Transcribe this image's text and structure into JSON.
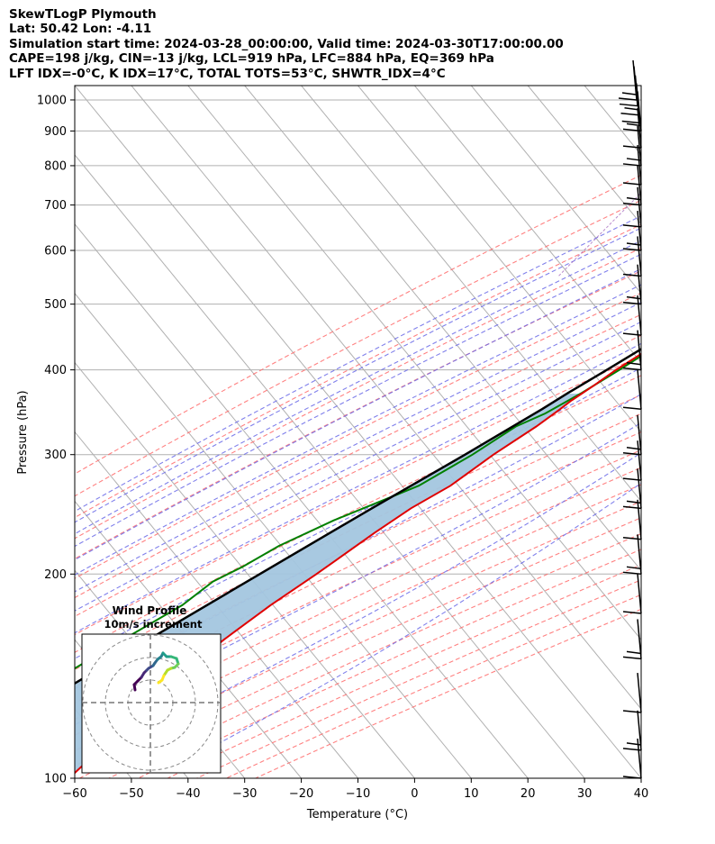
{
  "header": {
    "line1": "SkewTLogP Plymouth",
    "line2": "Lat: 50.42   Lon: -4.11",
    "line3": "Simulation start time: 2024-03-28_00:00:00, Valid time: 2024-03-30T17:00:00.00",
    "line4": "CAPE=198 j/kg, CIN=-13 j/kg, LCL=919 hPa, LFC=884 hPa, EQ=369 hPa",
    "line5": "LFT IDX=-0°C, K IDX=17°C, TOTAL TOTS=53°C, SHWTR_IDX=4°C"
  },
  "chart_data": {
    "type": "skewt",
    "xlabel": "Temperature (°C)",
    "ylabel": "Pressure (hPa)",
    "xlim": [
      -60,
      40
    ],
    "plim": [
      1050,
      100
    ],
    "y_scale": "log",
    "x_ticks": [
      "−60",
      "−50",
      "−40",
      "−30",
      "−20",
      "−10",
      "0",
      "10",
      "20",
      "30",
      "40"
    ],
    "x_tick_values": [
      -60,
      -50,
      -40,
      -30,
      -20,
      -10,
      0,
      10,
      20,
      30,
      40
    ],
    "p_ticks": [
      1000,
      900,
      800,
      700,
      600,
      500,
      400,
      300,
      200,
      100
    ],
    "grid": true,
    "colors": {
      "temperature": "#e00000",
      "dewpoint": "#008000",
      "parcel": "#000000",
      "cape": "#a3c6df",
      "cin": "#f19a9a",
      "dry_adiabat": "#ff6b6b",
      "moist_adiabat": "#6a6ae8",
      "mixing_ratio": "#9b59b6"
    },
    "temperature": [
      [
        980,
        10.3
      ],
      [
        950,
        9.3
      ],
      [
        925,
        8.2
      ],
      [
        900,
        7.0
      ],
      [
        850,
        5.2
      ],
      [
        800,
        2.9
      ],
      [
        750,
        0.3
      ],
      [
        700,
        -2.3
      ],
      [
        650,
        -4.6
      ],
      [
        600,
        -7.5
      ],
      [
        550,
        -11.0
      ],
      [
        500,
        -14.4
      ],
      [
        450,
        -18.7
      ],
      [
        400,
        -23.4
      ],
      [
        380,
        -25.0
      ],
      [
        360,
        -26.9
      ],
      [
        350,
        -27.6
      ],
      [
        330,
        -29.3
      ],
      [
        300,
        -32.8
      ],
      [
        270,
        -35.9
      ],
      [
        250,
        -39.6
      ],
      [
        230,
        -42.5
      ],
      [
        210,
        -45.3
      ],
      [
        200,
        -46.8
      ],
      [
        180,
        -50.4
      ],
      [
        160,
        -53.7
      ],
      [
        145,
        -55.8
      ],
      [
        135,
        -56.8
      ],
      [
        125,
        -57.8
      ],
      [
        115,
        -59.0
      ],
      [
        108,
        -60.0
      ],
      [
        100,
        -61.0
      ]
    ],
    "dewpoint": [
      [
        985,
        7.3
      ],
      [
        965,
        7.4
      ],
      [
        940,
        5.8
      ],
      [
        920,
        5.3
      ],
      [
        880,
        4.0
      ],
      [
        850,
        1.0
      ],
      [
        820,
        -1.7
      ],
      [
        790,
        -1.7
      ],
      [
        750,
        -3.2
      ],
      [
        700,
        -5.2
      ],
      [
        650,
        -6.7
      ],
      [
        600,
        -7.3
      ],
      [
        550,
        -9.8
      ],
      [
        500,
        -13.0
      ],
      [
        460,
        -16.2
      ],
      [
        430,
        -20.0
      ],
      [
        400,
        -22.8
      ],
      [
        370,
        -26.1
      ],
      [
        345,
        -29.6
      ],
      [
        330,
        -32.9
      ],
      [
        300,
        -36.5
      ],
      [
        270,
        -41.5
      ],
      [
        240,
        -51.5
      ],
      [
        220,
        -57.5
      ],
      [
        205,
        -60.9
      ],
      [
        195,
        -64.0
      ],
      [
        180,
        -66.0
      ],
      [
        160,
        -71.5
      ],
      [
        140,
        -77.5
      ],
      [
        120,
        -84.5
      ],
      [
        100,
        -94.0
      ]
    ],
    "parcel": [
      [
        985,
        11.8
      ],
      [
        950,
        10.2
      ],
      [
        925,
        9.2
      ],
      [
        900,
        8.3
      ],
      [
        850,
        6.3
      ],
      [
        800,
        4.0
      ],
      [
        750,
        1.5
      ],
      [
        700,
        -1.3
      ],
      [
        650,
        -4.4
      ],
      [
        600,
        -7.7
      ],
      [
        550,
        -11.3
      ],
      [
        500,
        -15.3
      ],
      [
        450,
        -19.9
      ],
      [
        400,
        -25.0
      ],
      [
        370,
        -28.5
      ],
      [
        350,
        -30.8
      ],
      [
        300,
        -37.8
      ],
      [
        250,
        -46.5
      ],
      [
        200,
        -56.8
      ],
      [
        150,
        -70.0
      ],
      [
        100,
        -88.0
      ]
    ],
    "wind_profile": {
      "title": "Wind Profile",
      "subtitle": "10m/s increment"
    },
    "wind_barb_pressures": [
      1000,
      980,
      950,
      925,
      900,
      850,
      800,
      750,
      700,
      650,
      600,
      550,
      500,
      450,
      400,
      350,
      300,
      275,
      250,
      225,
      200,
      175,
      150,
      125,
      110,
      100
    ]
  }
}
